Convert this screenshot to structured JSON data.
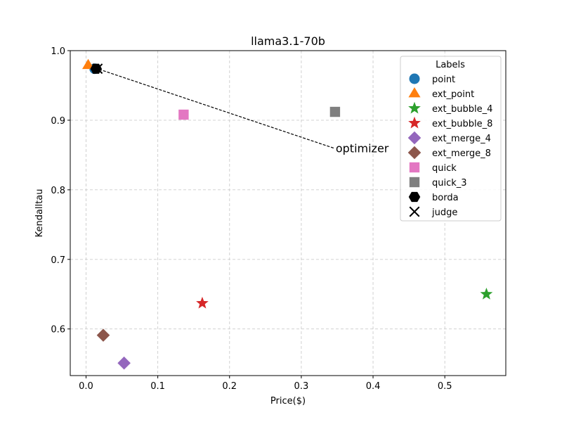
{
  "chart_data": {
    "type": "scatter",
    "title": "llama3.1-70b",
    "xlabel": "Price($)",
    "ylabel": "Kendalltau",
    "xlim": [
      -0.022,
      0.585
    ],
    "ylim": [
      0.533,
      1.0
    ],
    "xticks": [
      0.0,
      0.1,
      0.2,
      0.3,
      0.4,
      0.5
    ],
    "xtick_labels": [
      "0.0",
      "0.1",
      "0.2",
      "0.3",
      "0.4",
      "0.5"
    ],
    "yticks": [
      0.6,
      0.7,
      0.8,
      0.9,
      1.0
    ],
    "ytick_labels": [
      "0.6",
      "0.7",
      "0.8",
      "0.9",
      "1.0"
    ],
    "grid": true,
    "legend": {
      "title": "Labels",
      "placement": "top-right"
    },
    "series": [
      {
        "name": "point",
        "marker": "circle",
        "color": "#1f77b4",
        "points": [
          [
            0.012,
            0.974
          ]
        ]
      },
      {
        "name": "ext_point",
        "marker": "triangle",
        "color": "#ff7f0e",
        "points": [
          [
            0.003,
            0.979
          ]
        ]
      },
      {
        "name": "ext_bubble_4",
        "marker": "star",
        "color": "#2ca02c",
        "points": [
          [
            0.558,
            0.65
          ]
        ]
      },
      {
        "name": "ext_bubble_8",
        "marker": "star",
        "color": "#d62728",
        "points": [
          [
            0.162,
            0.637
          ]
        ]
      },
      {
        "name": "ext_merge_4",
        "marker": "diamond",
        "color": "#9467bd",
        "points": [
          [
            0.053,
            0.551
          ]
        ]
      },
      {
        "name": "ext_merge_8",
        "marker": "diamond",
        "color": "#8c564b",
        "points": [
          [
            0.024,
            0.591
          ]
        ]
      },
      {
        "name": "quick",
        "marker": "square",
        "color": "#e377c2",
        "points": [
          [
            0.136,
            0.908
          ]
        ]
      },
      {
        "name": "quick_3",
        "marker": "square",
        "color": "#7f7f7f",
        "points": [
          [
            0.347,
            0.912
          ]
        ]
      },
      {
        "name": "borda",
        "marker": "hexagon",
        "color": "#000000",
        "points": [
          [
            0.014,
            0.974
          ]
        ]
      },
      {
        "name": "judge",
        "marker": "x",
        "color": "#000000",
        "points": [
          [
            0.016,
            0.974
          ]
        ]
      }
    ],
    "annotations": [
      {
        "text": "optimizer",
        "from": [
          0.345,
          0.86
        ],
        "to": [
          0.013,
          0.975
        ],
        "style": "dashed-arrow"
      }
    ]
  }
}
